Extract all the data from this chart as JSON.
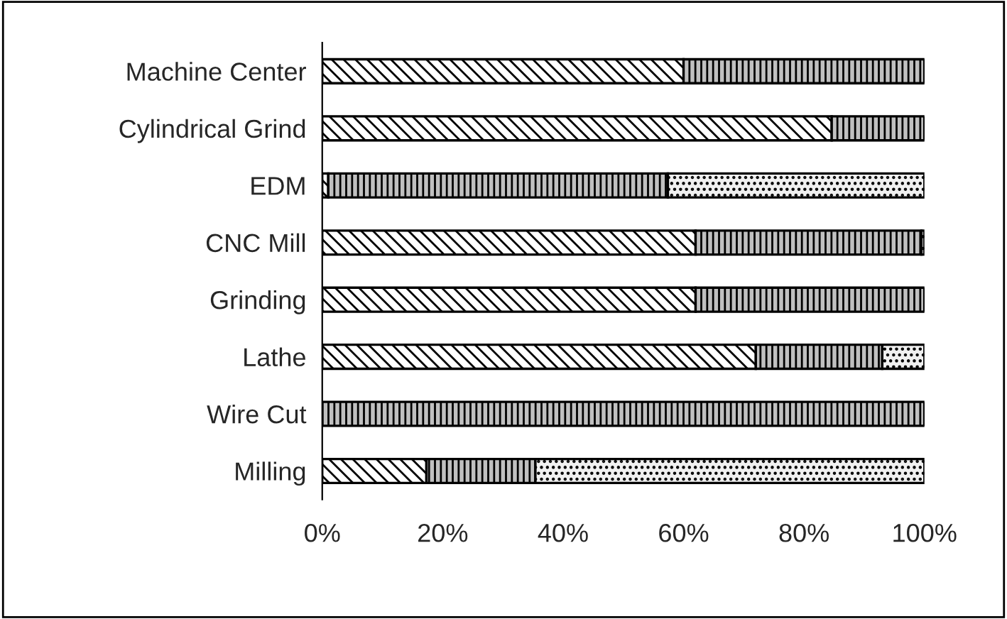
{
  "chart_data": {
    "type": "bar",
    "orientation": "horizontal",
    "stacked": true,
    "categories": [
      "Machine Center",
      "Cylindrical Grind",
      "EDM",
      "CNC Mill",
      "Grinding",
      "Lathe",
      "Wire Cut",
      "Milling"
    ],
    "series": [
      {
        "color": "#000000",
        "values": [
          60,
          84.6,
          1,
          62,
          62,
          72,
          0,
          17.3
        ]
      },
      {
        "color": "#000000",
        "values": [
          40,
          15.4,
          56.4,
          37.5,
          38,
          21,
          100,
          18.1
        ]
      },
      {
        "color": "#000000",
        "values": [
          0,
          0,
          42.6,
          0.5,
          0,
          7,
          0,
          64.6
        ]
      }
    ],
    "xlim": [
      0,
      100
    ],
    "xticks": [
      {
        "value": 0,
        "label": "0%"
      },
      {
        "value": 20,
        "label": "20%"
      },
      {
        "value": 40,
        "label": "40%"
      },
      {
        "value": 60,
        "label": "60%"
      },
      {
        "value": 80,
        "label": "80%"
      },
      {
        "value": 100,
        "label": "100%"
      }
    ],
    "grid": false,
    "legend": false
  }
}
